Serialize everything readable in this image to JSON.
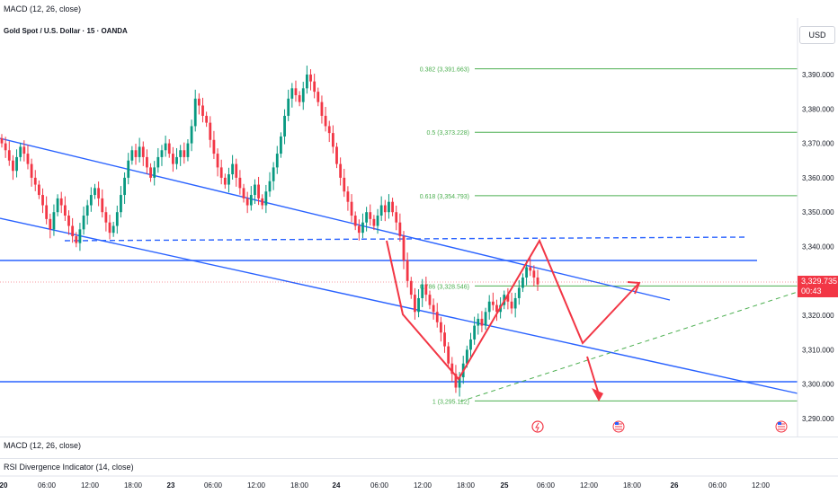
{
  "header": {
    "indicator_top": "MACD (12, 26, close)",
    "symbol": "Gold Spot / U.S. Dollar · 15 · OANDA",
    "currency": "USD"
  },
  "panes": {
    "macd_label": "MACD (12, 26, close)",
    "rsi_label": "RSI Divergence Indicator (14, close)"
  },
  "last_price": {
    "value": "3,329.735",
    "countdown": "00:43"
  },
  "chart_data": {
    "type": "candlestick",
    "ylim": [
      3287,
      3401
    ],
    "y_ticks": [
      "3,290.000",
      "3,300.000",
      "3,310.000",
      "3,320.000",
      "3,330.000",
      "3,340.000",
      "3,350.000",
      "3,360.000",
      "3,370.000",
      "3,380.000",
      "3,390.000"
    ],
    "x_ticks": [
      "20",
      "06:00",
      "12:00",
      "18:00",
      "23",
      "06:00",
      "12:00",
      "18:00",
      "24",
      "06:00",
      "12:00",
      "18:00",
      "25",
      "06:00",
      "12:00",
      "18:00",
      "26",
      "06:00",
      "12:00"
    ],
    "fib_levels": [
      {
        "label": "0.382 (3,391.663)",
        "price": 3391.663
      },
      {
        "label": "0.5 (3,373.228)",
        "price": 3373.228
      },
      {
        "label": "0.618 (3,354.793)",
        "price": 3354.793
      },
      {
        "label": "0.786 (3,328.546)",
        "price": 3328.546
      },
      {
        "label": "1 (3,295.112)",
        "price": 3295.112
      }
    ],
    "series": [
      {
        "name": "",
        "values": [
          3370,
          3368,
          3365,
          3362,
          3366,
          3369,
          3367,
          3364,
          3360,
          3358,
          3355,
          3352,
          3348,
          3345,
          3350,
          3354,
          3352,
          3349,
          3346,
          3343,
          3341,
          3345,
          3349,
          3352,
          3355,
          3357,
          3354,
          3350,
          3347,
          3344,
          3346,
          3350,
          3355,
          3360,
          3365,
          3368,
          3366,
          3369,
          3366,
          3363,
          3360,
          3363,
          3366,
          3368,
          3370,
          3367,
          3364,
          3366,
          3368,
          3366,
          3370,
          3375,
          3383,
          3381,
          3378,
          3376,
          3371,
          3367,
          3363,
          3360,
          3358,
          3361,
          3364,
          3360,
          3357,
          3354,
          3352,
          3355,
          3358,
          3354,
          3352,
          3356,
          3359,
          3363,
          3367,
          3372,
          3378,
          3383,
          3386,
          3384,
          3382,
          3386,
          3390,
          3388,
          3385,
          3382,
          3378,
          3375,
          3373,
          3369,
          3364,
          3360,
          3356,
          3353,
          3349,
          3346,
          3344,
          3347,
          3350,
          3348,
          3346,
          3349,
          3352,
          3350,
          3353,
          3350,
          3347,
          3343,
          3336,
          3330,
          3326,
          3321,
          3325,
          3329,
          3326,
          3323,
          3321,
          3318,
          3315,
          3311,
          3306,
          3303,
          3299,
          3302,
          3306,
          3310,
          3313,
          3317,
          3319,
          3317,
          3321,
          3324,
          3323,
          3321,
          3323,
          3326,
          3324,
          3322,
          3325,
          3328,
          3331,
          3334,
          3333,
          3331,
          3329
        ]
      }
    ]
  }
}
